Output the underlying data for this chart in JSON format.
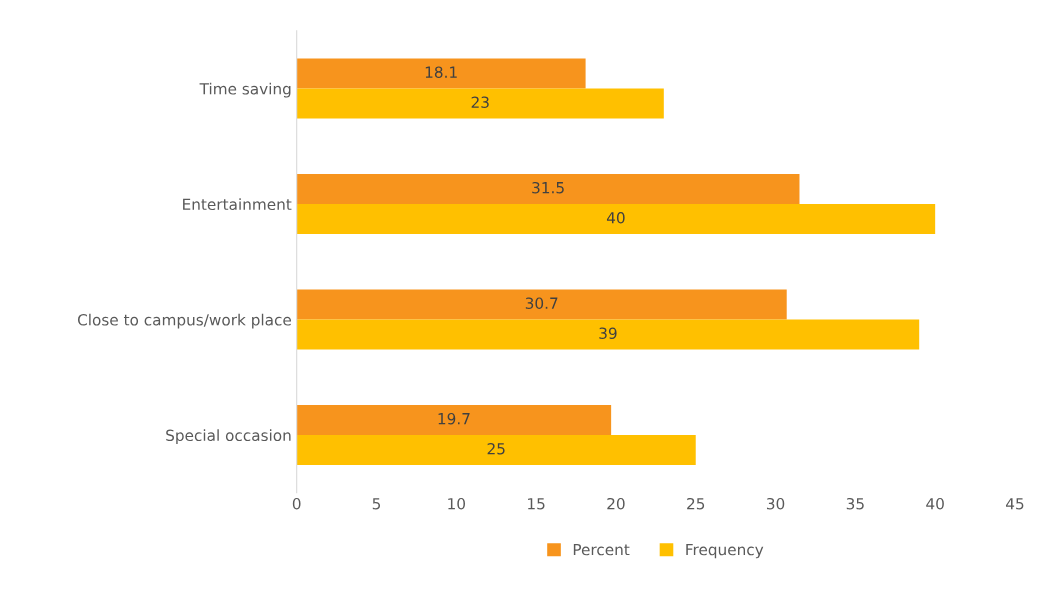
{
  "chart_data": {
    "type": "bar",
    "orientation": "horizontal",
    "categories": [
      "Time saving",
      "Entertainment",
      "Close to campus/work place",
      "Special occasion"
    ],
    "series": [
      {
        "name": "Percent",
        "color": "#f7941d",
        "values": [
          18.1,
          31.5,
          30.7,
          19.7
        ]
      },
      {
        "name": "Frequency",
        "color": "#ffc000",
        "values": [
          23,
          40,
          39,
          25
        ]
      }
    ],
    "xlim": [
      0,
      45
    ],
    "xticks": [
      0,
      5,
      10,
      15,
      20,
      25,
      30,
      35,
      40,
      45
    ],
    "grid": false,
    "legend": "bottom",
    "data_labels": true
  }
}
